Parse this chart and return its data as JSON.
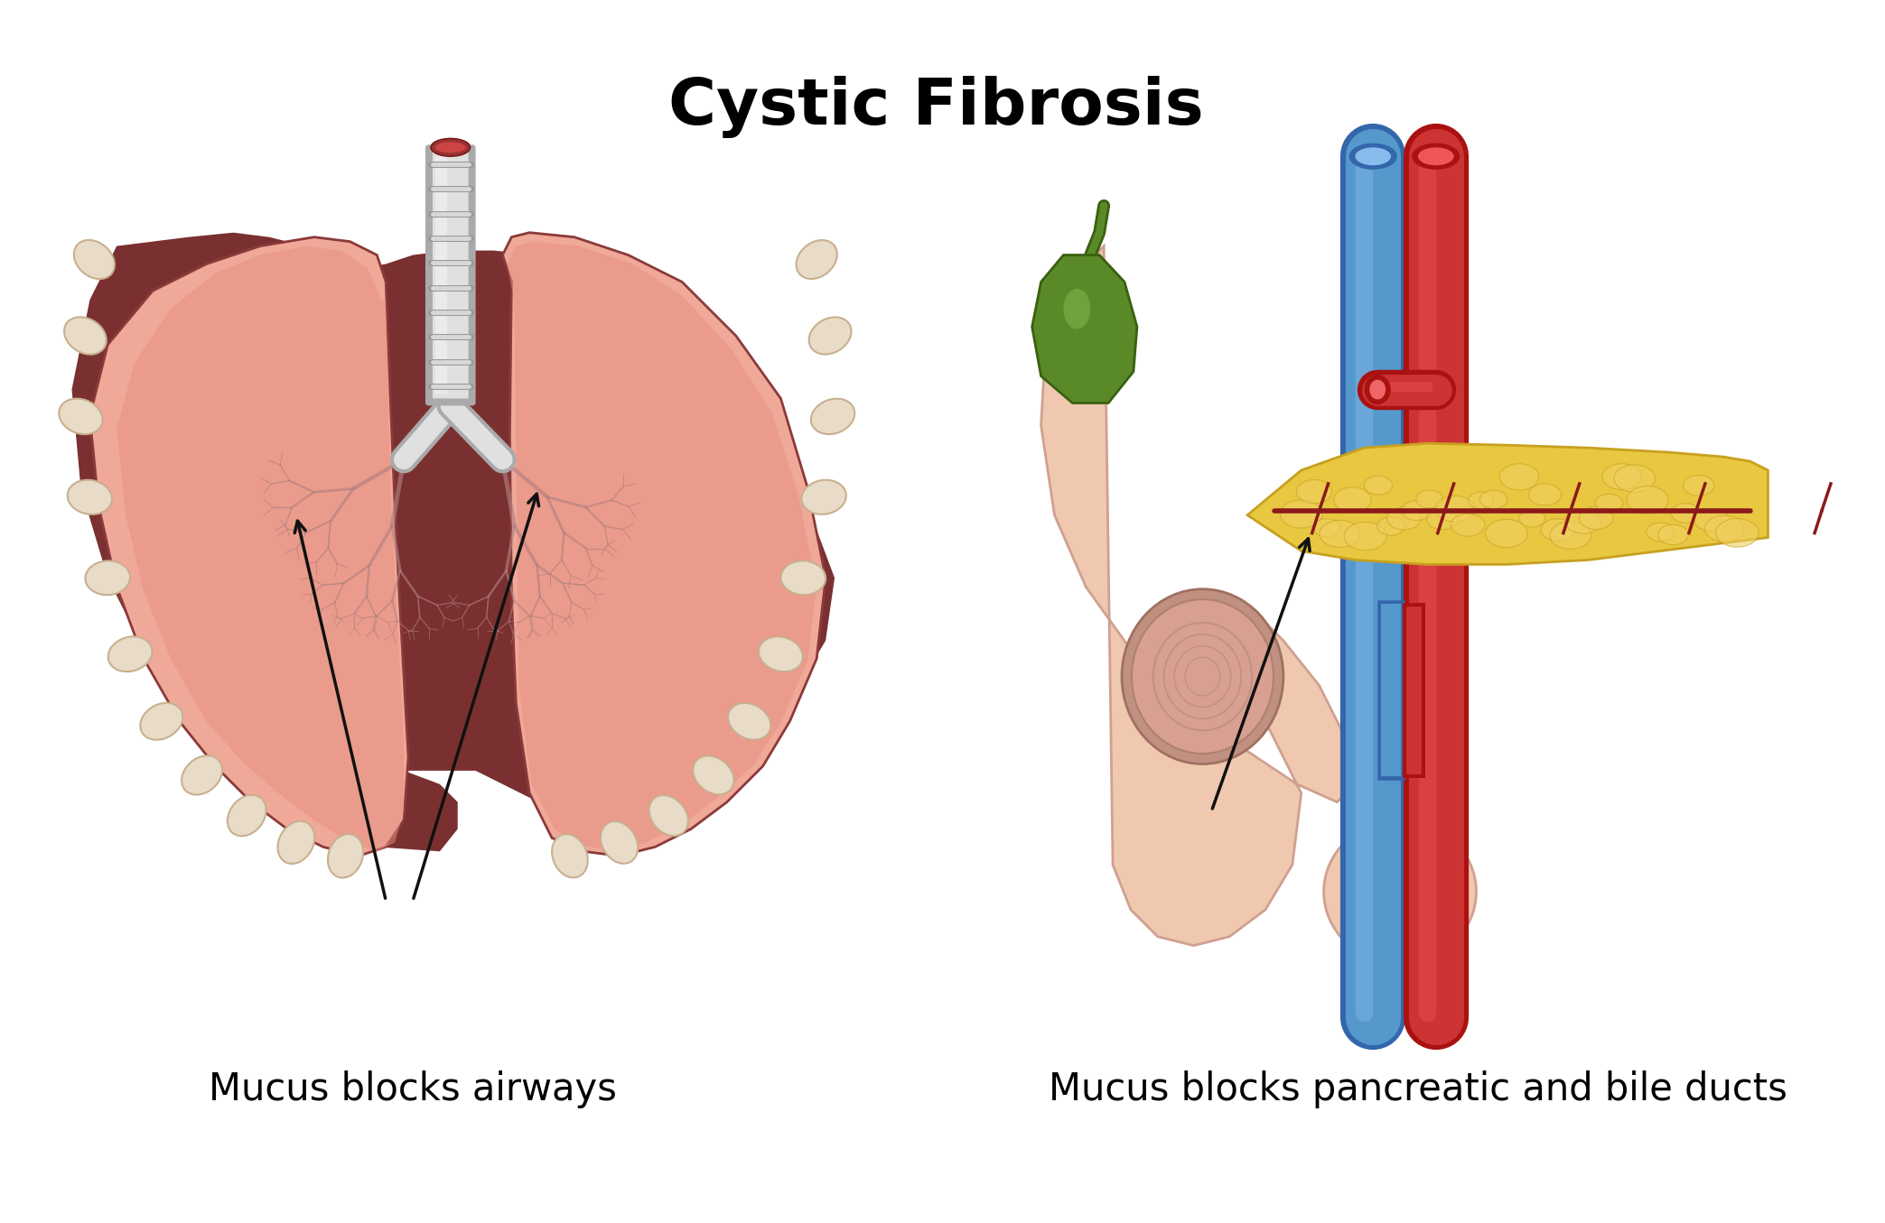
{
  "title": "Cystic Fibrosis",
  "title_fontsize": 52,
  "title_fontweight": "bold",
  "label_left": "Mucus blocks airways",
  "label_right": "Mucus blocks pancreatic and bile ducts",
  "label_fontsize": 30,
  "bg_color": "#ffffff",
  "lung_dark_bg": "#7a3030",
  "lung_fill_light": "#f0a898",
  "lung_fill_mid": "#e89080",
  "lung_outer_edge": "#8b3a3a",
  "rib_bump_color": "#e8dcc8",
  "rib_bump_shadow": "#c8b090",
  "trachea_light": "#e0e0e0",
  "trachea_mid": "#c8c8c8",
  "trachea_ring": "#d8d8d8",
  "trachea_tip_red": "#993333",
  "bronchial_color": "#b08080",
  "arrow_color": "#111111",
  "stomach_fill": "#f0c8b0",
  "stomach_edge": "#d0a090",
  "stomach_inner": "#c89080",
  "pancreas_fill": "#e8c840",
  "pancreas_edge": "#c8a020",
  "pancreas_duct_red": "#8b1a1a",
  "gallbladder_fill": "#5a8a28",
  "gallbladder_edge": "#3a6010",
  "artery_fill": "#cc3333",
  "artery_edge": "#aa1111",
  "artery_highlight": "#ee5555",
  "vein_fill": "#5599cc",
  "vein_edge": "#3366aa",
  "vein_highlight": "#88bbee",
  "small_vessel_blue": "#4488cc",
  "small_vessel_red": "#cc4444",
  "duodenum_fill": "#c09080",
  "duodenum_edge": "#a07060"
}
